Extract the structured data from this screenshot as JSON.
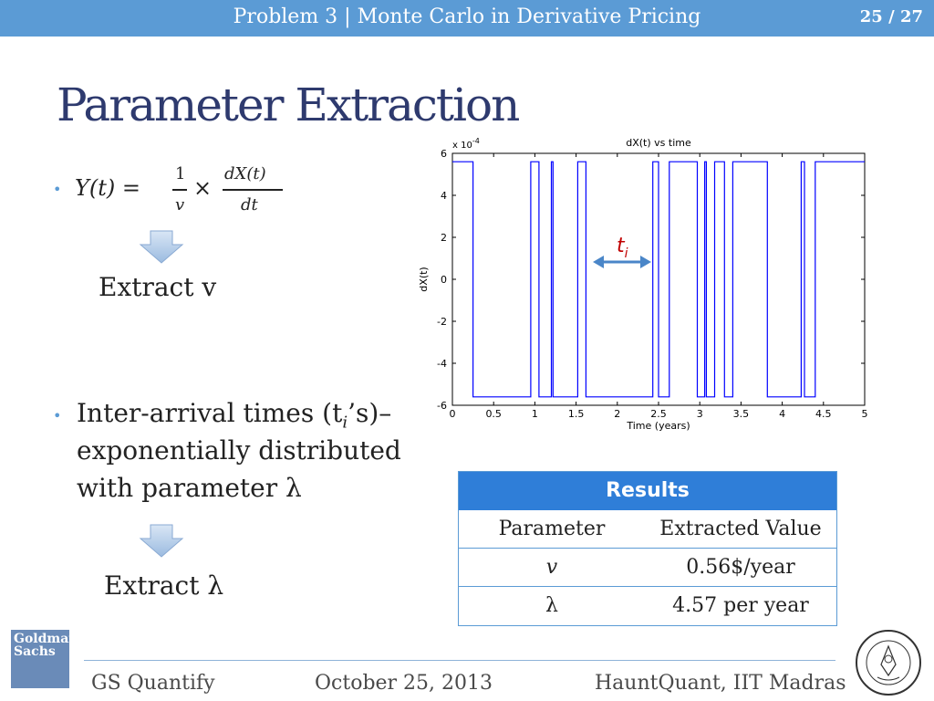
{
  "header": {
    "title": "Problem 3 | Monte Carlo in Derivative Pricing",
    "page": "25 / 27"
  },
  "slide": {
    "title": "Parameter Extraction"
  },
  "bullets": {
    "b1": {
      "formula_lhs": "Y(t) =",
      "frac1_num": "1",
      "frac1_den": "v",
      "times": "×",
      "frac2_num": "dX(t)",
      "frac2_den": "dt"
    },
    "extract_v": "Extract v",
    "b2_line1": "Inter-arrival times (t",
    "b2_sub": "i",
    "b2_line1_end": "’s)–",
    "b2_line2": "exponentially distributed",
    "b2_line3": "with parameter λ",
    "extract_lambda": "Extract λ"
  },
  "chart_data": {
    "type": "line",
    "title": "dX(t) vs time",
    "xlabel": "Time (years)",
    "ylabel": "dX(t)",
    "y_multiplier_label": "x 10",
    "y_multiplier_exp": "-4",
    "xlim": [
      0,
      5
    ],
    "ylim": [
      -6,
      6
    ],
    "xticks": [
      "0",
      "0.5",
      "1",
      "1.5",
      "2",
      "2.5",
      "3",
      "3.5",
      "4",
      "4.5",
      "5"
    ],
    "yticks": [
      "6",
      "4",
      "2",
      "0",
      "-2",
      "-4",
      "-6"
    ],
    "annotation": "t",
    "annotation_sub": "i",
    "series": [
      {
        "color": "#0000ff",
        "x": [
          0,
          0.25,
          0.25,
          0.95,
          0.95,
          1.05,
          1.05,
          1.2,
          1.2,
          1.22,
          1.22,
          1.52,
          1.52,
          1.62,
          1.62,
          2.43,
          2.43,
          2.5,
          2.5,
          2.63,
          2.63,
          2.97,
          2.97,
          3.06,
          3.06,
          3.08,
          3.08,
          3.18,
          3.18,
          3.3,
          3.3,
          3.4,
          3.4,
          3.82,
          3.82,
          4.23,
          4.23,
          4.27,
          4.27,
          4.4,
          4.4,
          4.5,
          4.5,
          5
        ],
        "values": [
          5.6,
          5.6,
          -5.6,
          -5.6,
          5.6,
          5.6,
          -5.6,
          -5.6,
          5.6,
          5.6,
          -5.6,
          -5.6,
          5.6,
          5.6,
          -5.6,
          -5.6,
          5.6,
          5.6,
          -5.6,
          -5.6,
          5.6,
          5.6,
          -5.6,
          -5.6,
          5.6,
          5.6,
          -5.6,
          -5.6,
          5.6,
          5.6,
          -5.6,
          -5.6,
          5.6,
          5.6,
          -5.6,
          -5.6,
          5.6,
          5.6,
          -5.6,
          -5.6,
          5.6,
          5.6,
          5.6,
          5.6
        ]
      }
    ]
  },
  "results": {
    "header": "Results",
    "col1": "Parameter",
    "col2": "Extracted Value",
    "rows": [
      {
        "param": "v",
        "value": "0.56$/year"
      },
      {
        "param": "λ",
        "value": "4.57 per year"
      }
    ]
  },
  "footer": {
    "left": "GS Quantify",
    "center": "October 25, 2013",
    "right": "HauntQuant, IIT Madras"
  },
  "logos": {
    "gs_line1": "Goldman",
    "gs_line2": "Sachs"
  }
}
